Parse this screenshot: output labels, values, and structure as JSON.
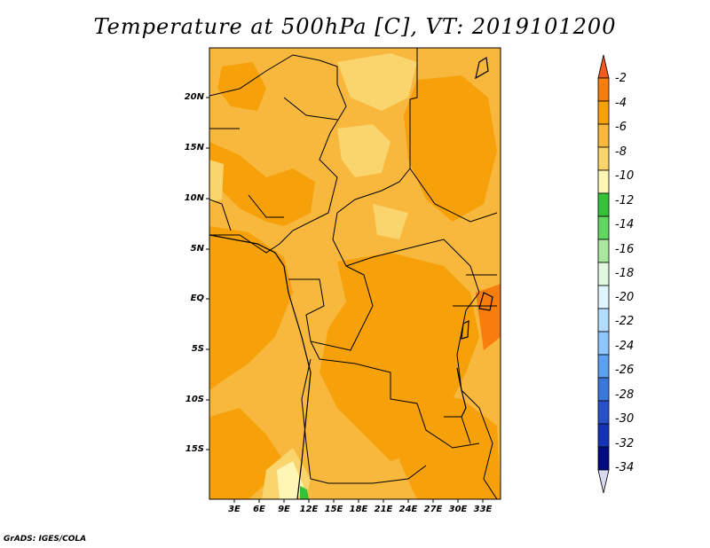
{
  "title": "Temperature at 500hPa [C], VT: 2019101200",
  "footer": "GrADS: IGES/COLA",
  "y_axis_labels": [
    "20N",
    "15N",
    "10N",
    "5N",
    "EQ",
    "5S",
    "10S",
    "15S"
  ],
  "x_axis_labels": [
    "3E",
    "6E",
    "9E",
    "12E",
    "15E",
    "18E",
    "21E",
    "24E",
    "27E",
    "30E",
    "33E"
  ],
  "colorbar": {
    "labels": [
      "-2",
      "-4",
      "-6",
      "-8",
      "-10",
      "-12",
      "-14",
      "-16",
      "-18",
      "-20",
      "-22",
      "-24",
      "-26",
      "-28",
      "-30",
      "-32",
      "-34"
    ],
    "colors": [
      "#f05a1e",
      "#f77e0c",
      "#f6a00a",
      "#f8b83e",
      "#fad46c",
      "#fff5b4",
      "#37c137",
      "#60d760",
      "#aae6a0",
      "#e0f8e0",
      "#e0f4ff",
      "#b3dcff",
      "#90c6ff",
      "#5ea0f0",
      "#3c78dc",
      "#2850c8",
      "#1432b4",
      "#000a80",
      "#d8d8f0"
    ]
  },
  "colors": {
    "band_minus4_minus6": "#f6a00a",
    "band_minus6_minus8": "#f8b83e",
    "band_minus8_minus10": "#fad46c",
    "band_minus10_minus12": "#fff5b4",
    "band_minus12_minus14": "#37c137"
  }
}
